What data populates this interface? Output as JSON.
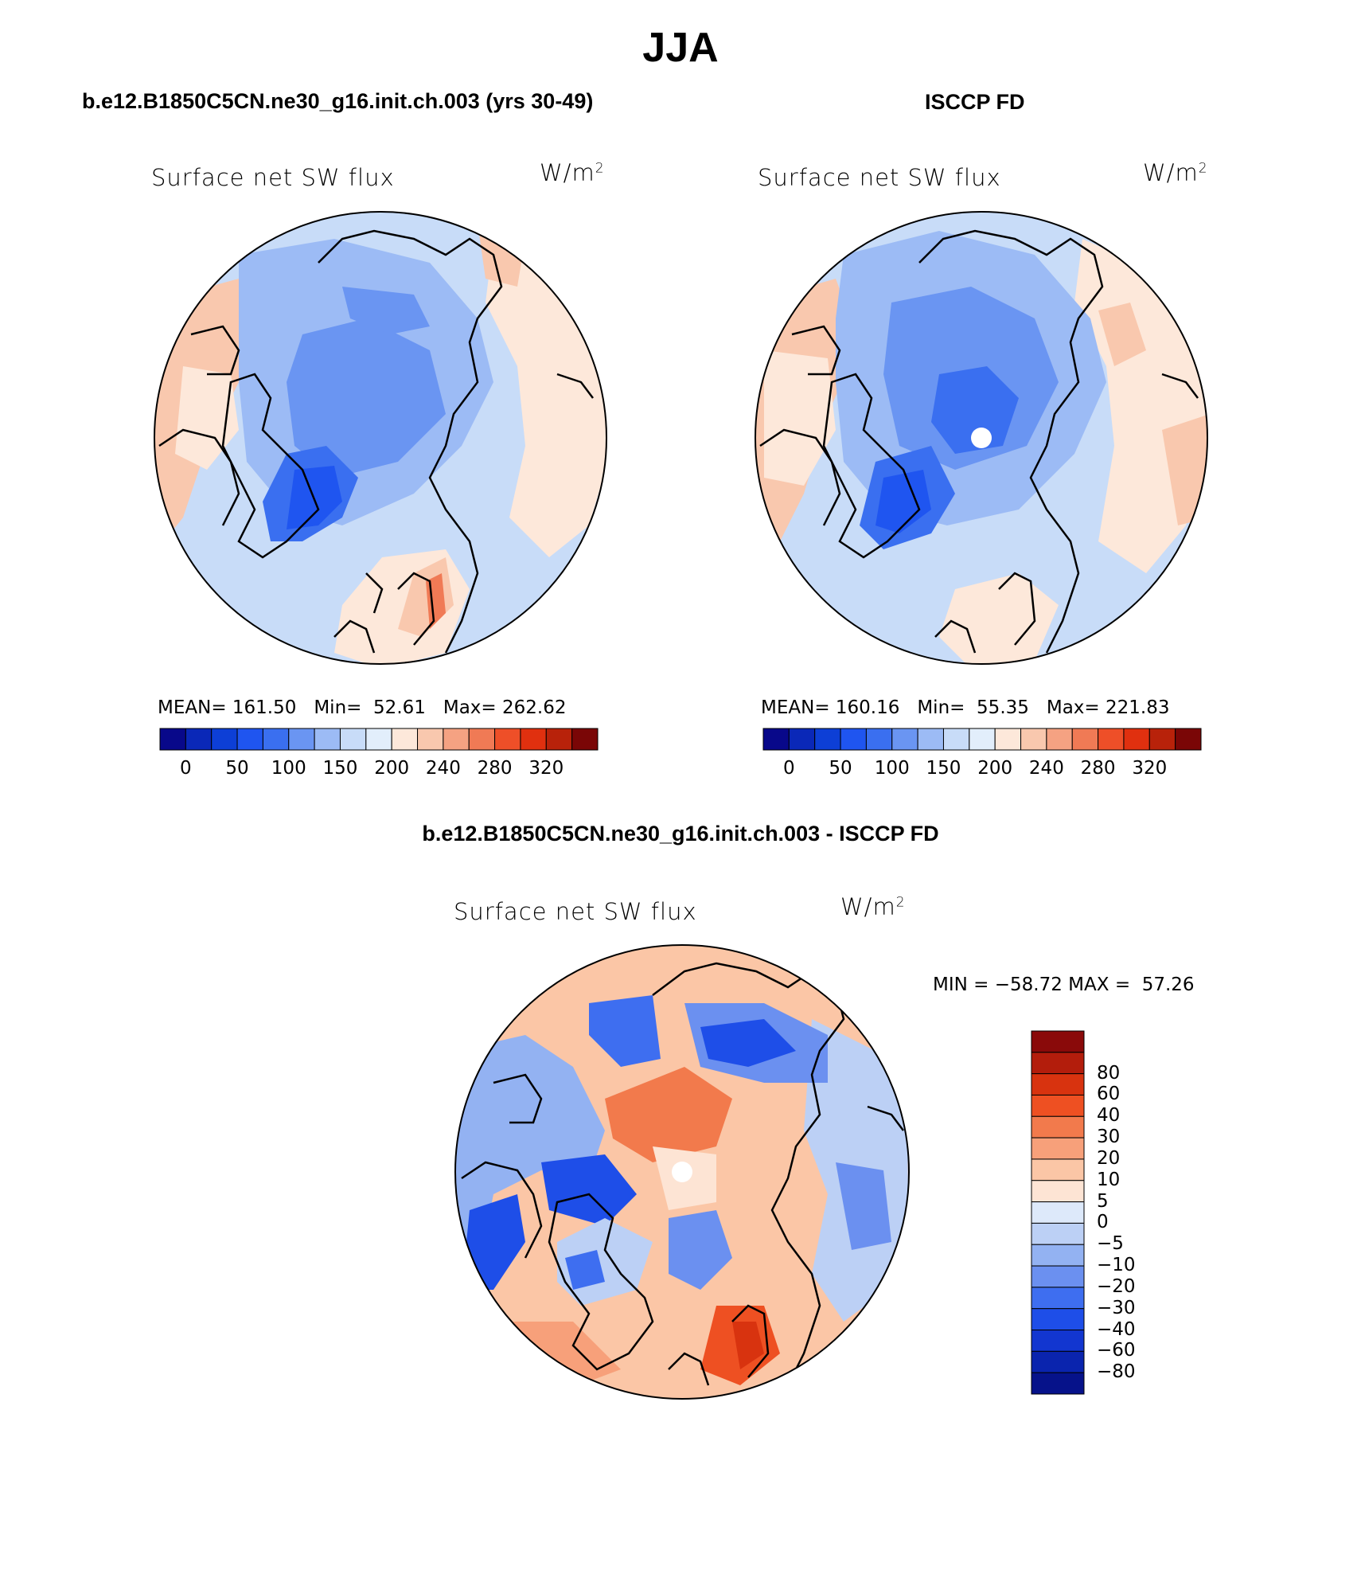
{
  "header": {
    "season": "JJA",
    "left_title": "b.e12.B1850C5CN.ne30_g16.init.ch.003 (yrs 30-49)",
    "right_title": "ISCCP FD",
    "diff_title": "b.e12.B1850C5CN.ne30_g16.init.ch.003 - ISCCP FD"
  },
  "panels": {
    "model": {
      "variable": "Surface net SW flux",
      "units_base": "W/m",
      "units_exp": "2",
      "mean_label": "MEAN=",
      "mean": "161.50",
      "min_label": "Min=",
      "min": "52.61",
      "max_label": "Max=",
      "max": "262.62"
    },
    "obs": {
      "variable": "Surface net SW flux",
      "units_base": "W/m",
      "units_exp": "2",
      "mean_label": "MEAN=",
      "mean": "160.16",
      "min_label": "Min=",
      "min": "55.35",
      "max_label": "Max=",
      "max": "221.83"
    },
    "diff": {
      "variable": "Surface net SW flux",
      "units_base": "W/m",
      "units_exp": "2",
      "min_label": "MIN =",
      "min": "−58.72",
      "max_label": "MAX =",
      "max": "57.26"
    }
  },
  "abs_colorbar": {
    "colors": [
      "#08088a",
      "#0a28b8",
      "#0d3fd6",
      "#1f55f0",
      "#3a6ff0",
      "#6a95f2",
      "#9cbbf5",
      "#c8dcf8",
      "#e2eefb",
      "#fde8da",
      "#f9c8ae",
      "#f5a282",
      "#f07a55",
      "#ee4f28",
      "#e0300f",
      "#b8220a",
      "#7a0606"
    ],
    "ticks": [
      "0",
      "50",
      "100",
      "150",
      "200",
      "240",
      "280",
      "320"
    ]
  },
  "diff_colorbar": {
    "colors_top_to_bottom": [
      "#8a0a0a",
      "#b31d0c",
      "#d8330f",
      "#ee5022",
      "#f27a4c",
      "#f7a07a",
      "#fbc6a6",
      "#fde4d4",
      "#dde9fa",
      "#bcd0f5",
      "#93b2f2",
      "#6b90f0",
      "#3e6ef0",
      "#1e4ee8",
      "#1236d0",
      "#0a24ae",
      "#06128a"
    ],
    "labels_top_to_bottom": [
      "80",
      "60",
      "40",
      "30",
      "20",
      "10",
      "5",
      "0",
      "−5",
      "−10",
      "−20",
      "−30",
      "−40",
      "−60",
      "−80"
    ]
  }
}
